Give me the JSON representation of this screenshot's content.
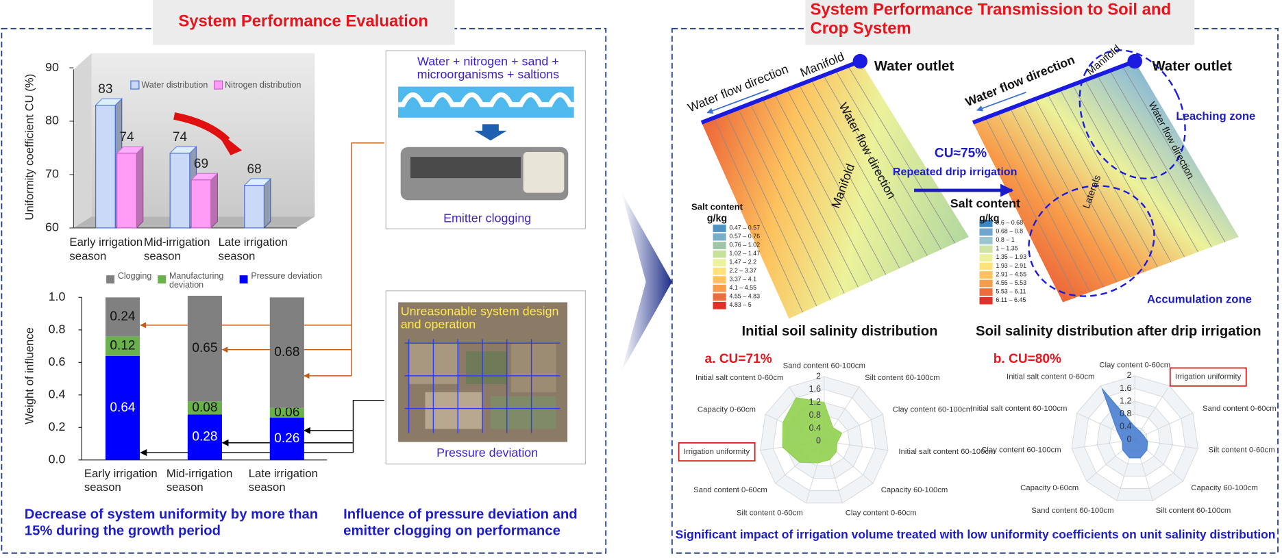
{
  "left_panel": {
    "title": "System Performance Evaluation",
    "emitter_inputs": "Water + nitrogen + sand + microorganisms + saltions",
    "emitter_label": "Emitter clogging",
    "pressure_note": "Unreasonable system design and operation",
    "pressure_label": "Pressure deviation",
    "caption_left": "Decrease of system uniformity by more than 15% during the growth period",
    "caption_right": "Influence of pressure deviation and emitter clogging on performance"
  },
  "right_panel": {
    "title": "System Performance Transmission to Soil and Crop System",
    "caption": "Significant impact of irrigation volume treated with low uniformity coefficients on unit salinity distribution",
    "process_cu": "CU≈75%",
    "process_label": "Repeated drip irrigation",
    "maps": [
      {
        "title": "Initial soil salinity distribution",
        "outlet": "Water outlet",
        "manifold_top": "Manifold",
        "flow_top": "Water flow direction",
        "flow_diagonal": "Water flow direction",
        "manifold_side": "Manifold",
        "legend_title": "Salt content",
        "legend_unit": "g/kg",
        "legend": [
          {
            "label": "0.47 – 0.57",
            "color": "#4f94c4"
          },
          {
            "label": "0.57 – 0.76",
            "color": "#78aec6"
          },
          {
            "label": "0.76 – 1.02",
            "color": "#9dc7a6"
          },
          {
            "label": "1.02 – 1.47",
            "color": "#c6e19a"
          },
          {
            "label": "1.47 – 2.2",
            "color": "#ecf29b"
          },
          {
            "label": "2.2 – 3.37",
            "color": "#fde27a"
          },
          {
            "label": "3.37 – 4.1",
            "color": "#fdc25e"
          },
          {
            "label": "4.1 – 4.55",
            "color": "#f89c4a"
          },
          {
            "label": "4.55 – 4.83",
            "color": "#ee6c3b"
          },
          {
            "label": "4.83 – 5",
            "color": "#e0302a"
          }
        ]
      },
      {
        "title": "Soil salinity distribution after drip irrigation",
        "outlet": "Water outlet",
        "manifold_top": "Manifold",
        "flow_top": "Water flow direction",
        "flow_diagonal": "Water flow direction",
        "laterals": "Laterals",
        "zone_leach": "Leaching zone",
        "zone_accum": "Accumulation zone",
        "legend_title": "Salt content",
        "legend_unit": "g/kg",
        "legend": [
          {
            "label": "0.6 – 0.68",
            "color": "#3b86c5"
          },
          {
            "label": "0.68 – 0.8",
            "color": "#6ea6cf"
          },
          {
            "label": "0.8 – 1",
            "color": "#9cc4cf"
          },
          {
            "label": "1 – 1.35",
            "color": "#cfe2a6"
          },
          {
            "label": "1.35 – 1.93",
            "color": "#ecf29b"
          },
          {
            "label": "1.93 – 2.91",
            "color": "#fde27a"
          },
          {
            "label": "2.91 – 4.55",
            "color": "#fdc25e"
          },
          {
            "label": "4.55 – 5.53",
            "color": "#f89c4a"
          },
          {
            "label": "5.53 – 6.11",
            "color": "#ee6c3b"
          },
          {
            "label": "6.11 – 6.45",
            "color": "#e0302a"
          }
        ]
      }
    ]
  },
  "chart_data": [
    {
      "type": "bar",
      "ylabel": "Uniformity coefficient CU (%)",
      "categories": [
        "Early irrigation season",
        "Mid-irrigation season",
        "Late irrigation season"
      ],
      "series": [
        {
          "name": "Water distribution",
          "color": "#c9d9f7",
          "values": [
            83,
            74,
            68
          ]
        },
        {
          "name": "Nitrogen distribution",
          "color": "#ff9cf5",
          "values": [
            74,
            69,
            null
          ]
        }
      ],
      "ylim": [
        60,
        90
      ],
      "yticks": [
        60,
        70,
        80,
        90
      ]
    },
    {
      "type": "bar",
      "stacked": true,
      "ylabel": "Weight of influence",
      "categories": [
        "Early irrigation season",
        "Mid-irrigation season",
        "Late irrigation season"
      ],
      "series": [
        {
          "name": "Clogging",
          "color": "#808080",
          "values": [
            0.24,
            0.65,
            0.68
          ]
        },
        {
          "name": "Manufacturing deviation",
          "color": "#6ab04c",
          "values": [
            0.12,
            0.08,
            0.06
          ]
        },
        {
          "name": "Pressure deviation",
          "color": "#0000ff",
          "values": [
            0.64,
            0.28,
            0.26
          ]
        }
      ],
      "ylim": [
        0,
        1
      ],
      "yticks": [
        {
          "value": 0,
          "label": "0.0"
        },
        0.2,
        0.4,
        0.6,
        0.8,
        {
          "value": 1,
          "label": "1.0"
        }
      ]
    },
    {
      "type": "radar",
      "title": "a. CU=71%",
      "categories": [
        "Sand content 60-100cm",
        "Silt content 60-100cm",
        "Clay content 60-100cm",
        "Initial salt content 60-100cm",
        "Capacity 60-100cm",
        "Clay content 0-60cm",
        "Silt content 0-60cm",
        "Sand content 0-60cm",
        "Irrigation uniformity",
        "Capacity 0-60cm",
        "Initial salt content 0-60cm"
      ],
      "series": [
        {
          "color": "#92d050",
          "values": [
            1.2,
            0.5,
            0.6,
            0.4,
            0.5,
            0.6,
            0.7,
            1.0,
            1.3,
            1.4,
            1.6
          ]
        }
      ],
      "rlim": [
        0,
        2
      ],
      "rticks": [
        0,
        0.4,
        0.8,
        1.2,
        1.6,
        2
      ],
      "boxed_category": 8
    },
    {
      "type": "radar",
      "title": "b. CU=80%",
      "categories": [
        "Clay content 0-60cm",
        "Irrigation uniformity",
        "Sand content 0-60cm",
        "Silt content 0-60cm",
        "Capacity 60-100cm",
        "Silt content 60-100cm",
        "Sand content 60-100cm",
        "Capacity 0-60cm",
        "Clay content 60-100cm",
        "Initial salt content 60-100cm",
        "Initial salt content 0-60cm"
      ],
      "series": [
        {
          "color": "#4a7fd0",
          "values": [
            0.4,
            0.3,
            0.3,
            0.4,
            0.5,
            0.6,
            0.6,
            0.5,
            0.4,
            0.6,
            1.9
          ]
        }
      ],
      "rlim": [
        0,
        2
      ],
      "rticks": [
        0,
        0.4,
        0.8,
        1.2,
        1.6,
        2
      ],
      "boxed_category": 1
    }
  ]
}
